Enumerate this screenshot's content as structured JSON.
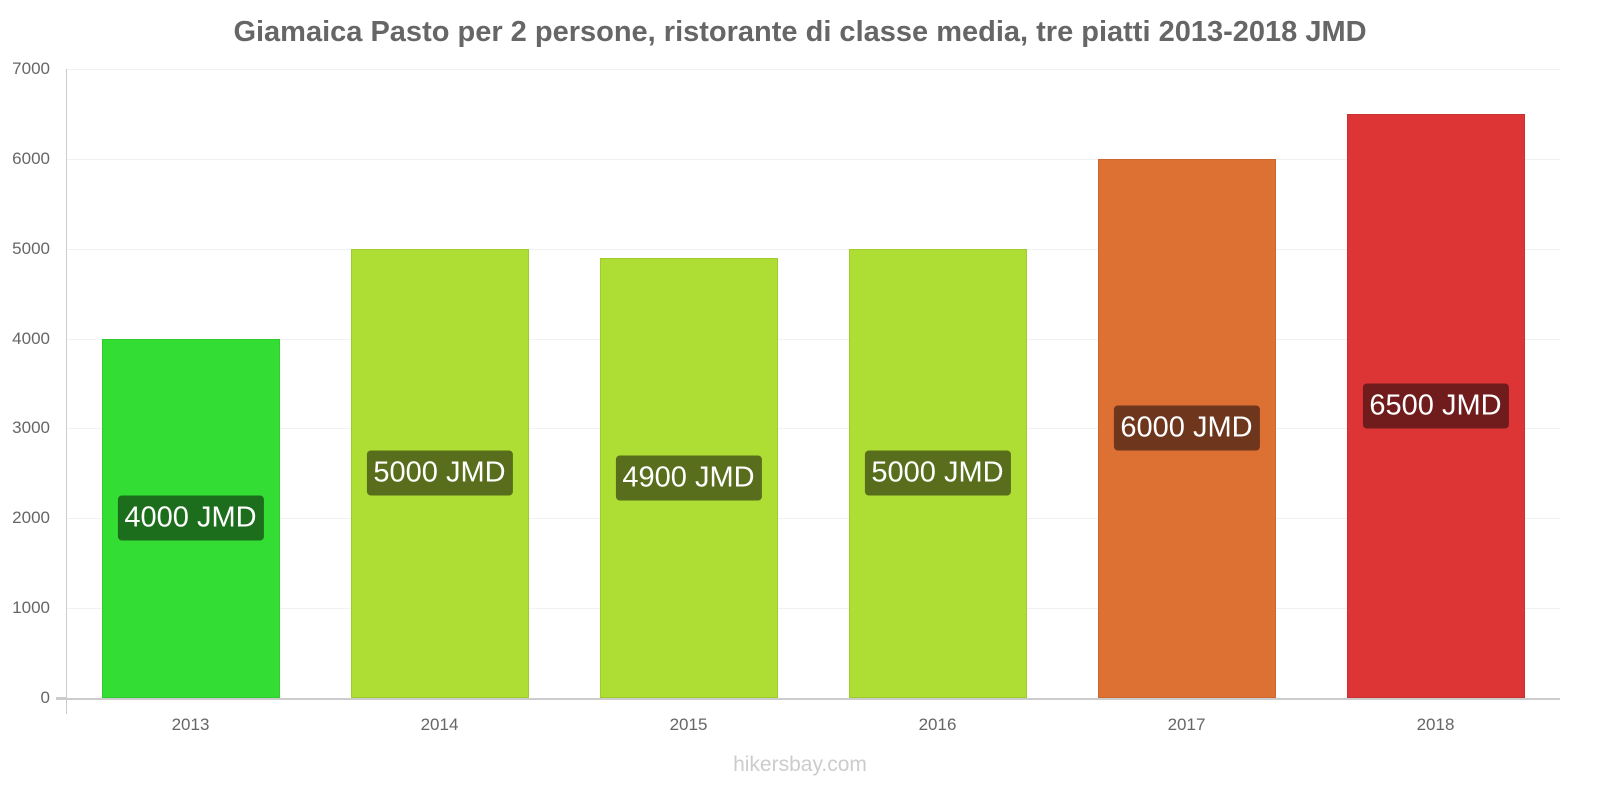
{
  "chart_data": {
    "type": "bar",
    "title": "Giamaica Pasto per 2 persone, ristorante di classe media, tre piatti 2013-2018 JMD",
    "xlabel": "",
    "ylabel": "",
    "ylim": [
      0,
      7000
    ],
    "yticks": [
      "0",
      "1000",
      "2000",
      "3000",
      "4000",
      "5000",
      "6000",
      "7000"
    ],
    "categories": [
      "2013",
      "2014",
      "2015",
      "2016",
      "2017",
      "2018"
    ],
    "values": [
      4000,
      5000,
      4900,
      5000,
      6000,
      6500
    ],
    "labels": [
      "4000 JMD",
      "5000 JMD",
      "4900 JMD",
      "5000 JMD",
      "6000 JMD",
      "6500 JMD"
    ],
    "bar_colors": [
      "#33dd33",
      "#aedd33",
      "#aedd33",
      "#aedd33",
      "#dd7033",
      "#dd3535"
    ],
    "label_colors": [
      "#1c6e1c",
      "#586e1c",
      "#586e1c",
      "#586e1c",
      "#6e361c",
      "#701c1c"
    ],
    "grid": true,
    "legend": null
  },
  "watermark": "hikersbay.com"
}
